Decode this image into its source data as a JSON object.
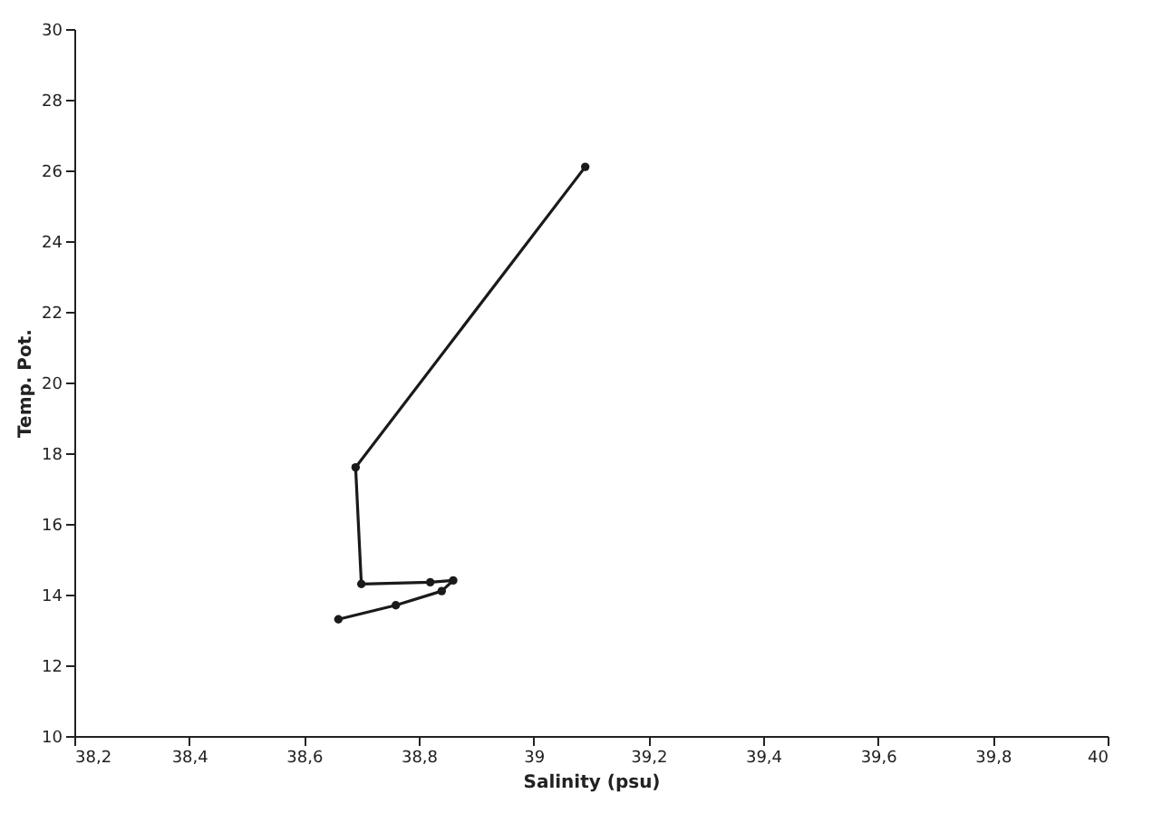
{
  "chart_data": {
    "type": "line",
    "xlabel": "Salinity (psu)",
    "ylabel": "Temp. Pot.",
    "x": [
      39.09,
      38.69,
      38.7,
      38.82,
      38.86,
      38.84,
      38.76,
      38.66
    ],
    "series": [
      {
        "color": "#1a1a1a",
        "values": [
          26.1,
          17.6,
          14.3,
          14.35,
          14.4,
          14.1,
          13.7,
          13.3
        ]
      }
    ],
    "xlim": [
      38.2,
      40
    ],
    "ylim": [
      10,
      30
    ],
    "xticks": [
      {
        "value": 38.2,
        "label": "38,2"
      },
      {
        "value": 38.4,
        "label": "38,4"
      },
      {
        "value": 38.6,
        "label": "38,6"
      },
      {
        "value": 38.8,
        "label": "38,8"
      },
      39,
      {
        "value": 39.2,
        "label": "39,2"
      },
      {
        "value": 39.4,
        "label": "39,4"
      },
      {
        "value": 39.6,
        "label": "39,6"
      },
      {
        "value": 39.8,
        "label": "39,8"
      },
      40
    ],
    "yticks": [
      10,
      12,
      14,
      16,
      18,
      20,
      22,
      24,
      26,
      28,
      30
    ],
    "marker": "circle",
    "line_style": "solid"
  }
}
